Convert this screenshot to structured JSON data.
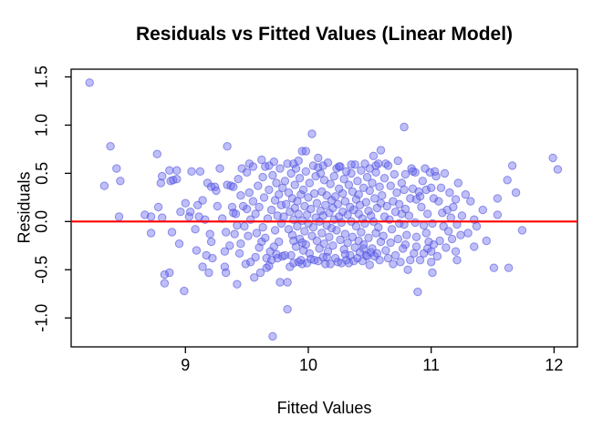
{
  "figure": {
    "title": "Residuals vs Fitted Values (Linear Model)",
    "xlabel": "Fitted Values",
    "ylabel": "Residuals"
  },
  "colors": {
    "background": "#ffffff",
    "axis": "#000000",
    "text": "#000000",
    "reference_line": "#ff0000",
    "point_fill": "#6464f0",
    "point_stroke": "#5050d8"
  },
  "chart_data": {
    "type": "scatter",
    "title": "Residuals vs Fitted Values (Linear Model)",
    "xlabel": "Fitted Values",
    "ylabel": "Residuals",
    "xlim": [
      8.07,
      12.19
    ],
    "ylim": [
      -1.3,
      1.58
    ],
    "x_ticks": [
      9,
      10,
      11,
      12
    ],
    "x_tick_labels": [
      "9",
      "10",
      "11",
      "12"
    ],
    "y_ticks": [
      -1.0,
      -0.5,
      0.0,
      0.5,
      1.0,
      1.5
    ],
    "y_tick_labels": [
      "-1.0",
      "-0.5",
      "0.0",
      "0.5",
      "1.0",
      "1.5"
    ],
    "grid": false,
    "legend": null,
    "reference_line": {
      "y": 0,
      "color": "#ff0000",
      "width": 2.2
    },
    "point_style": {
      "fill": "#6464f0",
      "fill_opacity": 0.42,
      "stroke": "#5050d8",
      "stroke_opacity": 0.6,
      "radius": 4.2
    },
    "n_points": 410,
    "points": [
      [
        8.22,
        1.44
      ],
      [
        8.34,
        0.37
      ],
      [
        8.39,
        0.78
      ],
      [
        8.44,
        0.55
      ],
      [
        8.46,
        0.05
      ],
      [
        8.47,
        0.42
      ],
      [
        8.67,
        0.07
      ],
      [
        8.72,
        0.05
      ],
      [
        8.72,
        -0.12
      ],
      [
        8.77,
        0.7
      ],
      [
        8.78,
        0.15
      ],
      [
        8.8,
        0.4
      ],
      [
        8.81,
        0.47
      ],
      [
        8.81,
        0.04
      ],
      [
        8.83,
        -0.55
      ],
      [
        8.83,
        -0.64
      ],
      [
        8.87,
        0.53
      ],
      [
        8.87,
        -0.53
      ],
      [
        8.88,
        0.42
      ],
      [
        8.89,
        -0.11
      ],
      [
        8.9,
        0.43
      ],
      [
        8.93,
        0.53
      ],
      [
        8.93,
        0.44
      ],
      [
        8.95,
        -0.23
      ],
      [
        8.96,
        0.1
      ],
      [
        8.99,
        -0.72
      ],
      [
        9.0,
        0.19
      ],
      [
        9.03,
        0.05
      ],
      [
        9.04,
        0.1
      ],
      [
        9.05,
        0.52
      ],
      [
        9.08,
        -0.08
      ],
      [
        9.09,
        -0.3
      ],
      [
        9.1,
        0.17
      ],
      [
        9.11,
        0.05
      ],
      [
        9.12,
        0.52
      ],
      [
        9.14,
        0.22
      ],
      [
        9.14,
        -0.47
      ],
      [
        9.16,
        0.02
      ],
      [
        9.17,
        -0.35
      ],
      [
        9.18,
        0.4
      ],
      [
        9.19,
        -0.53
      ],
      [
        9.2,
        -0.13
      ],
      [
        9.21,
        0.36
      ],
      [
        9.21,
        -0.21
      ],
      [
        9.22,
        -0.38
      ],
      [
        9.24,
        0.36
      ],
      [
        9.25,
        0.32
      ],
      [
        9.26,
        0.16
      ],
      [
        9.28,
        0.55
      ],
      [
        9.3,
        0.03
      ],
      [
        9.32,
        -0.47
      ],
      [
        9.32,
        -0.31
      ],
      [
        9.33,
        -0.53
      ],
      [
        9.33,
        -0.11
      ],
      [
        9.34,
        0.78
      ],
      [
        9.34,
        0.38
      ],
      [
        9.36,
        -0.25
      ],
      [
        9.37,
        0.37
      ],
      [
        9.38,
        0.15
      ],
      [
        9.39,
        0.09
      ],
      [
        9.39,
        0.36
      ],
      [
        9.4,
        -0.13
      ],
      [
        9.42,
        -0.65
      ],
      [
        9.42,
        -0.04
      ],
      [
        9.45,
        0.27
      ],
      [
        9.45,
        -0.23
      ],
      [
        9.48,
        -0.05
      ],
      [
        9.5,
        0.13
      ],
      [
        9.56,
        -0.58
      ],
      [
        9.57,
        -0.37
      ],
      [
        9.61,
        -0.53
      ],
      [
        9.62,
        0.64
      ],
      [
        9.62,
        -0.21
      ],
      [
        9.66,
        -0.48
      ],
      [
        9.66,
        -0.38
      ],
      [
        9.68,
        -0.46
      ],
      [
        9.71,
        -1.19
      ],
      [
        9.72,
        0.62
      ],
      [
        9.72,
        -0.26
      ],
      [
        9.77,
        -0.63
      ],
      [
        9.41,
        0.08
      ],
      [
        9.43,
        0.44
      ],
      [
        9.44,
        -0.33
      ],
      [
        9.46,
        0.55
      ],
      [
        9.47,
        0.16
      ],
      [
        9.49,
        -0.44
      ],
      [
        9.5,
        0.51
      ],
      [
        9.51,
        -0.15
      ],
      [
        9.52,
        0.6
      ],
      [
        9.52,
        0.3
      ],
      [
        9.53,
        0.02
      ],
      [
        9.53,
        -0.42
      ],
      [
        9.55,
        0.21
      ],
      [
        9.55,
        0.57
      ],
      [
        9.57,
        0.08
      ],
      [
        9.58,
        -0.12
      ],
      [
        9.59,
        0.37
      ],
      [
        9.6,
        -0.27
      ],
      [
        9.6,
        0.15
      ],
      [
        9.63,
        0.46
      ],
      [
        9.63,
        -0.06
      ],
      [
        9.64,
        0.25
      ],
      [
        9.65,
        -0.17
      ],
      [
        9.65,
        0.57
      ],
      [
        9.67,
        0.03
      ],
      [
        9.68,
        0.33
      ],
      [
        9.68,
        0.58
      ],
      [
        9.69,
        -0.31
      ],
      [
        9.7,
        0.12
      ],
      [
        9.7,
        -0.4
      ],
      [
        9.71,
        0.48
      ],
      [
        9.73,
        0.22
      ],
      [
        9.73,
        -0.09
      ],
      [
        9.74,
        0.4
      ],
      [
        9.74,
        -0.34
      ],
      [
        9.75,
        -0.38
      ],
      [
        9.75,
        0.06
      ],
      [
        9.76,
        0.28
      ],
      [
        9.76,
        -0.21
      ],
      [
        9.77,
        0.55
      ],
      [
        9.78,
        -0.02
      ],
      [
        9.78,
        0.17
      ],
      [
        9.79,
        -0.36
      ],
      [
        9.79,
        0.35
      ],
      [
        9.83,
        -0.91
      ],
      [
        9.83,
        -0.63
      ],
      [
        9.85,
        -0.47
      ],
      [
        9.95,
        0.73
      ],
      [
        10.03,
        0.91
      ],
      [
        9.8,
        0.05
      ],
      [
        9.81,
        0.42
      ],
      [
        9.81,
        -0.35
      ],
      [
        9.82,
        0.18
      ],
      [
        9.83,
        0.6
      ],
      [
        9.84,
        -0.08
      ],
      [
        9.84,
        0.3
      ],
      [
        9.85,
        0.1
      ],
      [
        9.86,
        -0.35
      ],
      [
        9.86,
        0.5
      ],
      [
        9.87,
        -0.14
      ],
      [
        9.87,
        0.24
      ],
      [
        9.88,
        0.02
      ],
      [
        9.88,
        -0.43
      ],
      [
        9.88,
        0.6
      ],
      [
        9.89,
        0.38
      ],
      [
        9.89,
        0.14
      ],
      [
        9.9,
        -0.26
      ],
      [
        9.9,
        0.55
      ],
      [
        9.91,
        -0.05
      ],
      [
        9.91,
        0.21
      ],
      [
        9.92,
        -0.42
      ],
      [
        9.92,
        0.08
      ],
      [
        9.92,
        0.63
      ],
      [
        9.93,
        0.45
      ],
      [
        9.93,
        -0.18
      ],
      [
        9.94,
        0.28
      ],
      [
        9.94,
        -0.4
      ],
      [
        9.95,
        0.01
      ],
      [
        9.95,
        -0.44
      ],
      [
        9.96,
        0.33
      ],
      [
        9.96,
        -0.3
      ],
      [
        9.97,
        0.16
      ],
      [
        9.97,
        -0.1
      ],
      [
        9.98,
        0.52
      ],
      [
        9.98,
        -0.24
      ],
      [
        9.98,
        0.73
      ],
      [
        9.99,
        0.07
      ],
      [
        9.99,
        -0.43
      ],
      [
        10.0,
        0.25
      ],
      [
        10.0,
        -0.02
      ],
      [
        10.01,
        0.4
      ],
      [
        10.01,
        -0.33
      ],
      [
        10.02,
        0.13
      ],
      [
        10.02,
        -0.39
      ],
      [
        10.03,
        -0.15
      ],
      [
        10.04,
        0.58
      ],
      [
        10.04,
        -0.06
      ],
      [
        10.05,
        0.29
      ],
      [
        10.05,
        -0.4
      ],
      [
        10.06,
        0.04
      ],
      [
        10.06,
        0.47
      ],
      [
        10.07,
        -0.2
      ],
      [
        10.07,
        0.19
      ],
      [
        10.08,
        -0.41
      ],
      [
        10.08,
        0.56
      ],
      [
        10.09,
        0.0
      ],
      [
        10.09,
        -0.28
      ],
      [
        10.1,
        0.5
      ],
      [
        10.1,
        0.11
      ],
      [
        10.11,
        -0.12
      ],
      [
        10.11,
        0.31
      ],
      [
        10.12,
        -0.37
      ],
      [
        10.12,
        0.58
      ],
      [
        10.13,
        0.43
      ],
      [
        10.13,
        -0.23
      ],
      [
        10.14,
        0.17
      ],
      [
        10.14,
        -0.44
      ],
      [
        10.15,
        0.27
      ],
      [
        10.15,
        -0.04
      ],
      [
        10.16,
        0.61
      ],
      [
        10.16,
        -0.31
      ],
      [
        10.17,
        0.09
      ],
      [
        10.17,
        -0.16
      ],
      [
        10.18,
        0.39
      ],
      [
        10.18,
        -0.44
      ],
      [
        10.19,
        0.22
      ],
      [
        10.19,
        -0.07
      ],
      [
        10.12,
        0.06
      ],
      [
        9.95,
        -0.22
      ],
      [
        10.08,
        0.66
      ],
      [
        9.88,
        -0.2
      ],
      [
        10.15,
        -0.37
      ],
      [
        10.5,
        -0.45
      ],
      [
        10.57,
        0.6
      ],
      [
        10.59,
        0.74
      ],
      [
        10.2,
        0.14
      ],
      [
        10.2,
        -0.25
      ],
      [
        10.21,
        0.47
      ],
      [
        10.21,
        0.02
      ],
      [
        10.22,
        -0.38
      ],
      [
        10.22,
        0.26
      ],
      [
        10.23,
        -0.09
      ],
      [
        10.23,
        0.55
      ],
      [
        10.24,
        0.18
      ],
      [
        10.24,
        -0.42
      ],
      [
        10.25,
        0.05
      ],
      [
        10.25,
        0.34
      ],
      [
        10.26,
        -0.19
      ],
      [
        10.26,
        0.57
      ],
      [
        10.27,
        -0.01
      ],
      [
        10.27,
        -0.43
      ],
      [
        10.28,
        0.29
      ],
      [
        10.28,
        0.1
      ],
      [
        10.29,
        -0.29
      ],
      [
        10.29,
        0.44
      ],
      [
        10.3,
        -0.13
      ],
      [
        10.3,
        0.21
      ],
      [
        10.31,
        0.52
      ],
      [
        10.31,
        -0.4
      ],
      [
        10.32,
        0.07
      ],
      [
        10.32,
        -0.22
      ],
      [
        10.33,
        0.38
      ],
      [
        10.33,
        -0.43
      ],
      [
        10.34,
        0.15
      ],
      [
        10.34,
        -0.35
      ],
      [
        10.35,
        0.5
      ],
      [
        10.35,
        0.0
      ],
      [
        10.36,
        -0.16
      ],
      [
        10.36,
        0.31
      ],
      [
        10.37,
        -0.41
      ],
      [
        10.37,
        0.12
      ],
      [
        10.38,
        0.59
      ],
      [
        10.38,
        -0.27
      ],
      [
        10.39,
        0.23
      ],
      [
        10.39,
        -0.05
      ],
      [
        10.4,
        0.42
      ],
      [
        10.4,
        -0.38
      ],
      [
        10.41,
        0.08
      ],
      [
        10.41,
        0.28
      ],
      [
        10.42,
        -0.32
      ],
      [
        10.42,
        0.17
      ],
      [
        10.43,
        -0.11
      ],
      [
        10.43,
        0.53
      ],
      [
        10.44,
        -0.41
      ],
      [
        10.44,
        0.03
      ],
      [
        10.45,
        0.35
      ],
      [
        10.45,
        -0.28
      ],
      [
        10.46,
        0.6
      ],
      [
        10.46,
        -0.02
      ],
      [
        10.47,
        -0.35
      ],
      [
        10.47,
        0.2
      ],
      [
        10.48,
        -0.36
      ],
      [
        10.48,
        0.46
      ],
      [
        10.49,
        0.11
      ],
      [
        10.49,
        -0.17
      ],
      [
        10.5,
        0.32
      ],
      [
        10.51,
        -0.32
      ],
      [
        10.51,
        0.06
      ],
      [
        10.52,
        0.4
      ],
      [
        10.52,
        -0.28
      ],
      [
        10.53,
        0.68
      ],
      [
        10.53,
        0.0
      ],
      [
        10.54,
        -0.36
      ],
      [
        10.54,
        0.24
      ],
      [
        10.55,
        -0.12
      ],
      [
        10.55,
        0.51
      ],
      [
        10.56,
        -0.33
      ],
      [
        10.56,
        0.14
      ],
      [
        10.57,
        -0.06
      ],
      [
        10.58,
        0.36
      ],
      [
        10.58,
        -0.4
      ],
      [
        10.59,
        0.19
      ],
      [
        10.59,
        -0.21
      ],
      [
        10.55,
        0.58
      ],
      [
        10.35,
        0.59
      ],
      [
        10.25,
        0.57
      ],
      [
        10.45,
        -0.24
      ],
      [
        10.3,
        -0.34
      ],
      [
        10.5,
        0.55
      ],
      [
        10.41,
        -0.2
      ],
      [
        10.76,
        0.08
      ],
      [
        10.78,
        0.33
      ],
      [
        10.78,
        -0.03
      ],
      [
        10.78,
        0.98
      ],
      [
        10.79,
        0.49
      ],
      [
        10.79,
        0.13
      ],
      [
        10.79,
        -0.24
      ],
      [
        10.8,
        -0.14
      ],
      [
        10.81,
        -0.5
      ],
      [
        10.83,
        0.24
      ],
      [
        10.83,
        -0.4
      ],
      [
        10.85,
        0.34
      ],
      [
        10.87,
        0.51
      ],
      [
        10.87,
        -0.01
      ],
      [
        10.88,
        0.23
      ],
      [
        10.88,
        -0.16
      ],
      [
        10.88,
        -0.26
      ],
      [
        10.89,
        -0.73
      ],
      [
        10.9,
        0.31
      ],
      [
        10.91,
        -0.4
      ],
      [
        10.94,
        -0.04
      ],
      [
        10.94,
        -0.33
      ],
      [
        10.98,
        -0.21
      ],
      [
        10.99,
        0.51
      ],
      [
        10.6,
        0.27
      ],
      [
        10.61,
        -0.15
      ],
      [
        10.62,
        0.45
      ],
      [
        10.62,
        0.05
      ],
      [
        10.63,
        -0.3
      ],
      [
        10.63,
        0.6
      ],
      [
        10.64,
        0.16
      ],
      [
        10.65,
        -0.38
      ],
      [
        10.65,
        0.58
      ],
      [
        10.66,
        0.02
      ],
      [
        10.67,
        -0.22
      ],
      [
        10.67,
        0.37
      ],
      [
        10.68,
        -0.08
      ],
      [
        10.69,
        0.21
      ],
      [
        10.69,
        -0.44
      ],
      [
        10.7,
        0.49
      ],
      [
        10.71,
        0.1
      ],
      [
        10.71,
        -0.35
      ],
      [
        10.72,
        0.3
      ],
      [
        10.73,
        -0.18
      ],
      [
        10.73,
        0.63
      ],
      [
        10.74,
        -0.02
      ],
      [
        10.74,
        0.18
      ],
      [
        10.75,
        -0.42
      ],
      [
        10.76,
        0.4
      ],
      [
        10.77,
        -0.28
      ],
      [
        10.82,
        0.06
      ],
      [
        10.84,
        0.55
      ],
      [
        10.86,
        -0.33
      ],
      [
        10.92,
        0.15
      ],
      [
        10.93,
        0.42
      ],
      [
        10.95,
        0.55
      ],
      [
        10.96,
        -0.12
      ],
      [
        10.97,
        0.08
      ],
      [
        10.97,
        -0.28
      ],
      [
        10.85,
        0.52
      ],
      [
        10.91,
        0.26
      ],
      [
        10.96,
        0.33
      ],
      [
        11.0,
        0.35
      ],
      [
        11.0,
        -0.31
      ],
      [
        11.0,
        -0.42
      ],
      [
        11.01,
        -0.02
      ],
      [
        11.01,
        -0.53
      ],
      [
        11.02,
        0.24
      ],
      [
        11.02,
        -0.24
      ],
      [
        11.04,
        0.47
      ],
      [
        11.05,
        -0.36
      ],
      [
        11.06,
        0.21
      ],
      [
        11.1,
        -0.05
      ],
      [
        11.13,
        0.12
      ],
      [
        11.16,
        0.04
      ],
      [
        11.2,
        0.23
      ],
      [
        11.2,
        -0.31
      ],
      [
        11.21,
        -0.03
      ],
      [
        11.21,
        -0.4
      ],
      [
        11.24,
        -0.14
      ],
      [
        11.32,
        0.21
      ],
      [
        11.35,
        0.02
      ],
      [
        11.35,
        -0.26
      ],
      [
        11.37,
        -0.05
      ],
      [
        11.03,
        0.52
      ],
      [
        11.07,
        -0.2
      ],
      [
        11.08,
        0.35
      ],
      [
        11.09,
        0.09
      ],
      [
        11.11,
        0.5
      ],
      [
        11.12,
        -0.27
      ],
      [
        11.14,
        -0.1
      ],
      [
        11.15,
        0.3
      ],
      [
        11.17,
        -0.18
      ],
      [
        11.18,
        0.15
      ],
      [
        11.22,
        0.4
      ],
      [
        11.25,
        0.06
      ],
      [
        11.28,
        0.28
      ],
      [
        11.3,
        -0.12
      ],
      [
        11.42,
        0.12
      ],
      [
        11.45,
        -0.2
      ],
      [
        11.51,
        -0.48
      ],
      [
        11.54,
        0.24
      ],
      [
        11.54,
        0.07
      ],
      [
        11.62,
        0.43
      ],
      [
        11.63,
        -0.48
      ],
      [
        11.66,
        0.58
      ],
      [
        11.69,
        0.3
      ],
      [
        11.74,
        -0.09
      ],
      [
        11.99,
        0.66
      ],
      [
        12.03,
        0.54
      ]
    ]
  }
}
